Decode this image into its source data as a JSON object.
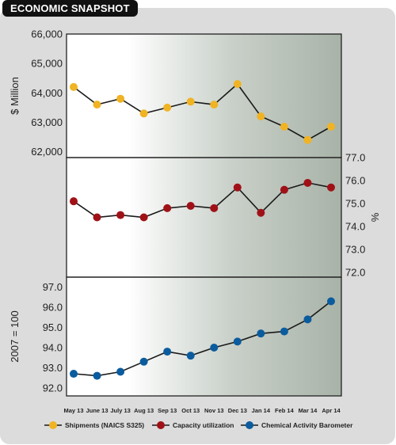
{
  "header": {
    "title": "ECONOMIC SNAPSHOT"
  },
  "chart_data": {
    "type": "line",
    "categories": [
      "May 13",
      "June 13",
      "July 13",
      "Aug 13",
      "Sep 13",
      "Oct 13",
      "Nov 13",
      "Dec 13",
      "Jan 14",
      "Feb 14",
      "Mar 14",
      "Apr 14"
    ],
    "panels": [
      {
        "name": "Shipments (NAICS S325)",
        "ylabel": "$ Million",
        "axis_side": "left",
        "ylim": [
          61800,
          66000
        ],
        "ticks": [
          "62,000",
          "63,000",
          "64,000",
          "65,000",
          "66,000"
        ],
        "tick_values": [
          62000,
          63000,
          64000,
          65000,
          66000
        ],
        "values": [
          64200,
          63600,
          63800,
          63300,
          63500,
          63700,
          63600,
          64300,
          63200,
          62850,
          62400,
          62850
        ],
        "color": "#f0b323"
      },
      {
        "name": "Capacity utilization",
        "ylabel": "%",
        "axis_side": "right",
        "ylim": [
          71.8,
          77.0
        ],
        "ticks": [
          "72.0",
          "73.0",
          "74.0",
          "75.0",
          "76.0",
          "77.0"
        ],
        "tick_values": [
          72,
          73,
          74,
          75,
          76,
          77
        ],
        "values": [
          75.1,
          74.4,
          74.5,
          74.4,
          74.8,
          74.9,
          74.8,
          75.7,
          74.6,
          75.6,
          75.9,
          75.7
        ],
        "color": "#a01117"
      },
      {
        "name": "Chemical Activity Barometer",
        "ylabel": "2007 = 100",
        "axis_side": "left",
        "ylim": [
          91.6,
          97.5
        ],
        "ticks": [
          "92.0",
          "93.0",
          "94.0",
          "95.0",
          "96.0",
          "97.0"
        ],
        "tick_values": [
          92,
          93,
          94,
          95,
          96,
          97
        ],
        "values": [
          92.7,
          92.6,
          92.8,
          93.3,
          93.8,
          93.6,
          94.0,
          94.3,
          94.7,
          94.8,
          95.4,
          96.3
        ],
        "color": "#0b5c9e"
      }
    ],
    "legend": {
      "placement": "bottom",
      "items": [
        {
          "label": "Shipments (NAICS S325)",
          "color": "#f0b323"
        },
        {
          "label": "Capacity utilization",
          "color": "#a01117"
        },
        {
          "label": "Chemical Activity Barometer",
          "color": "#0b5c9e"
        }
      ]
    },
    "grid": false
  }
}
